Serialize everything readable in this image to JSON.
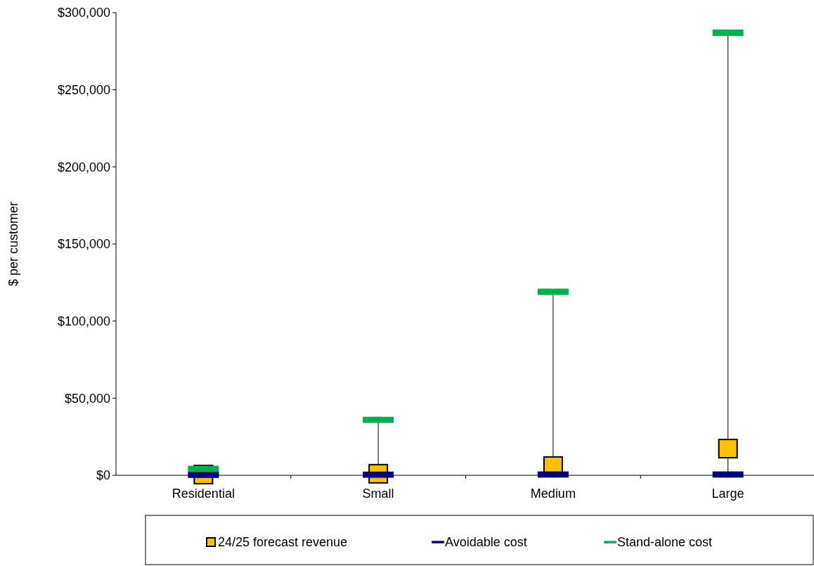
{
  "chart_data": {
    "type": "scatter",
    "ylabel": "$ per customer",
    "categories": [
      "Residential",
      "Small",
      "Medium",
      "Large"
    ],
    "ylim": [
      0,
      300000
    ],
    "yticks": [
      {
        "value": 0,
        "label": "$0"
      },
      {
        "value": 50000,
        "label": "$50,000"
      },
      {
        "value": 100000,
        "label": "$100,000"
      },
      {
        "value": 150000,
        "label": "$150,000"
      },
      {
        "value": 200000,
        "label": "$200,000"
      },
      {
        "value": 250000,
        "label": "$250,000"
      },
      {
        "value": 300000,
        "label": "$300,000"
      }
    ],
    "legend": "bottom",
    "series": [
      {
        "name": "24/25 forecast revenue",
        "color": "#ffc000",
        "marker": "square",
        "values": [
          500,
          1000,
          6000,
          17300
        ]
      },
      {
        "name": "Avoidable cost",
        "color": "#000080",
        "marker": "square",
        "values": [
          300,
          400,
          500,
          500
        ]
      },
      {
        "name": "Stand-alone cost",
        "color": "#00b050",
        "marker": "square",
        "values": [
          4200,
          36000,
          119000,
          287000
        ]
      }
    ]
  }
}
